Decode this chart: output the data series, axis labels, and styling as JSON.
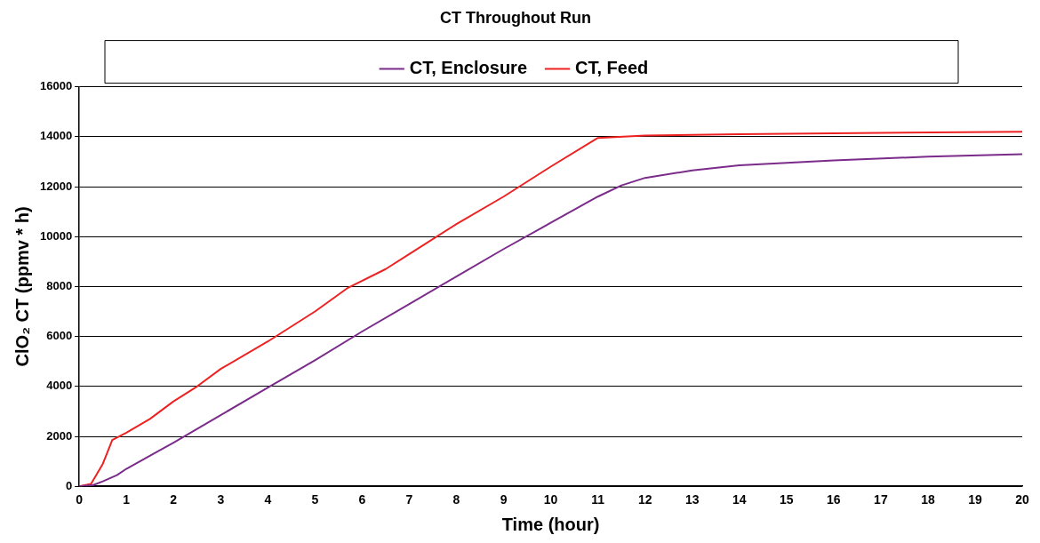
{
  "chart_data": {
    "type": "line",
    "title": "CT Throughout Run",
    "xlabel": "Time (hour)",
    "ylabel": "ClO₂ CT (ppmv * h)",
    "xlim": [
      0,
      20
    ],
    "xticks": [
      0,
      1,
      2,
      3,
      4,
      5,
      6,
      7,
      8,
      9,
      10,
      11,
      12,
      13,
      14,
      15,
      16,
      17,
      18,
      19,
      20
    ],
    "ylim": [
      0,
      16000
    ],
    "yticks": [
      0,
      2000,
      4000,
      6000,
      8000,
      10000,
      12000,
      14000,
      16000
    ],
    "grid": "y",
    "legend": "top",
    "marker": "none",
    "line_style": "solid",
    "series": [
      {
        "name": "CT, Enclosure",
        "color": "#7b2c8b",
        "x": [
          0,
          0.3,
          0.5,
          0.8,
          1,
          2,
          3,
          4,
          5,
          6,
          7,
          8,
          9,
          10,
          11,
          11.5,
          12,
          13,
          14,
          16,
          18,
          20
        ],
        "values": [
          0,
          50,
          200,
          450,
          700,
          1750,
          2850,
          3950,
          5050,
          6200,
          7300,
          8400,
          9500,
          10550,
          11600,
          12050,
          12350,
          12650,
          12850,
          13050,
          13200,
          13300
        ]
      },
      {
        "name": "CT, Feed",
        "color": "#ee2222",
        "x": [
          0,
          0.25,
          0.5,
          0.7,
          1,
          1.5,
          2,
          2.5,
          3,
          4,
          5,
          5.7,
          6.5,
          7,
          8,
          9,
          10,
          11,
          12,
          14,
          17,
          20
        ],
        "values": [
          0,
          100,
          900,
          1850,
          2150,
          2700,
          3400,
          4000,
          4700,
          5800,
          7000,
          7950,
          8700,
          9300,
          10500,
          11600,
          12800,
          13950,
          14050,
          14100,
          14150,
          14200
        ]
      }
    ]
  }
}
